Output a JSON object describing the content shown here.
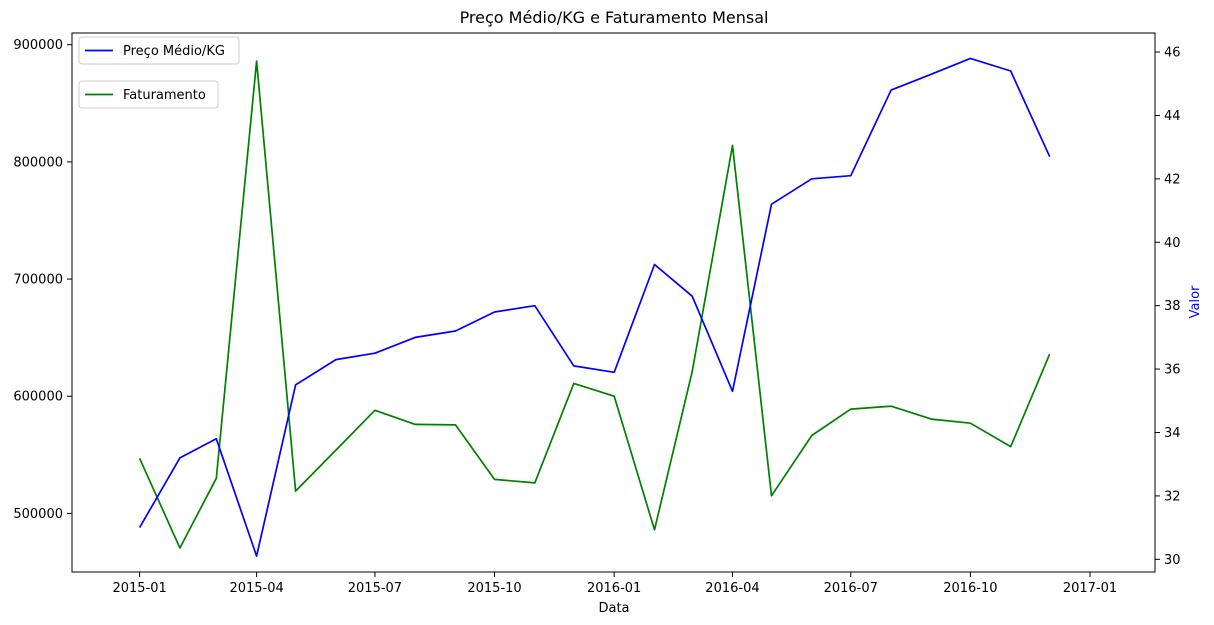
{
  "chart_data": {
    "type": "line",
    "title": "Preço Médio/KG e Faturamento Mensal",
    "xlabel": "Data",
    "ylabel_left": "",
    "ylabel_right": "Valor",
    "x": [
      "2015-01",
      "2015-02",
      "2015-03",
      "2015-04",
      "2015-05",
      "2015-06",
      "2015-07",
      "2015-08",
      "2015-09",
      "2015-10",
      "2015-11",
      "2015-12",
      "2016-01",
      "2016-02",
      "2016-03",
      "2016-04",
      "2016-05",
      "2016-06",
      "2016-07",
      "2016-08",
      "2016-09",
      "2016-10",
      "2016-11",
      "2016-12"
    ],
    "x_ticks": [
      "2015-01",
      "2015-04",
      "2015-07",
      "2015-10",
      "2016-01",
      "2016-04",
      "2016-07",
      "2016-10",
      "2017-01"
    ],
    "left_axis": {
      "ylim": [
        450000,
        910000
      ],
      "ticks": [
        500000,
        600000,
        700000,
        800000,
        900000
      ]
    },
    "right_axis": {
      "ylim": [
        29.6,
        46.6
      ],
      "ticks": [
        30,
        32,
        34,
        36,
        38,
        40,
        42,
        44,
        46
      ]
    },
    "grid": false,
    "series": [
      {
        "name": "Faturamento",
        "axis": "left",
        "color": "#008000",
        "values": [
          547000,
          470500,
          530000,
          886000,
          519000,
          554000,
          588000,
          576000,
          575500,
          529000,
          526000,
          611000,
          600000,
          486000,
          621000,
          814000,
          515000,
          566500,
          589000,
          591500,
          580500,
          577000,
          557000,
          636000
        ]
      },
      {
        "name": "Preço Médio/KG",
        "axis": "right",
        "color": "#0000ff",
        "values": [
          31.0,
          33.2,
          33.8,
          30.1,
          35.5,
          36.3,
          36.5,
          37.0,
          37.2,
          37.8,
          38.0,
          36.1,
          35.9,
          39.3,
          38.3,
          35.3,
          41.2,
          42.0,
          42.1,
          44.8,
          45.3,
          45.8,
          45.4,
          42.7
        ]
      }
    ],
    "legends": [
      {
        "entries": [
          "Preço Médio/KG"
        ],
        "placement": "upper-left"
      },
      {
        "entries": [
          "Faturamento"
        ],
        "placement": "upper-left, below first legend"
      }
    ]
  }
}
